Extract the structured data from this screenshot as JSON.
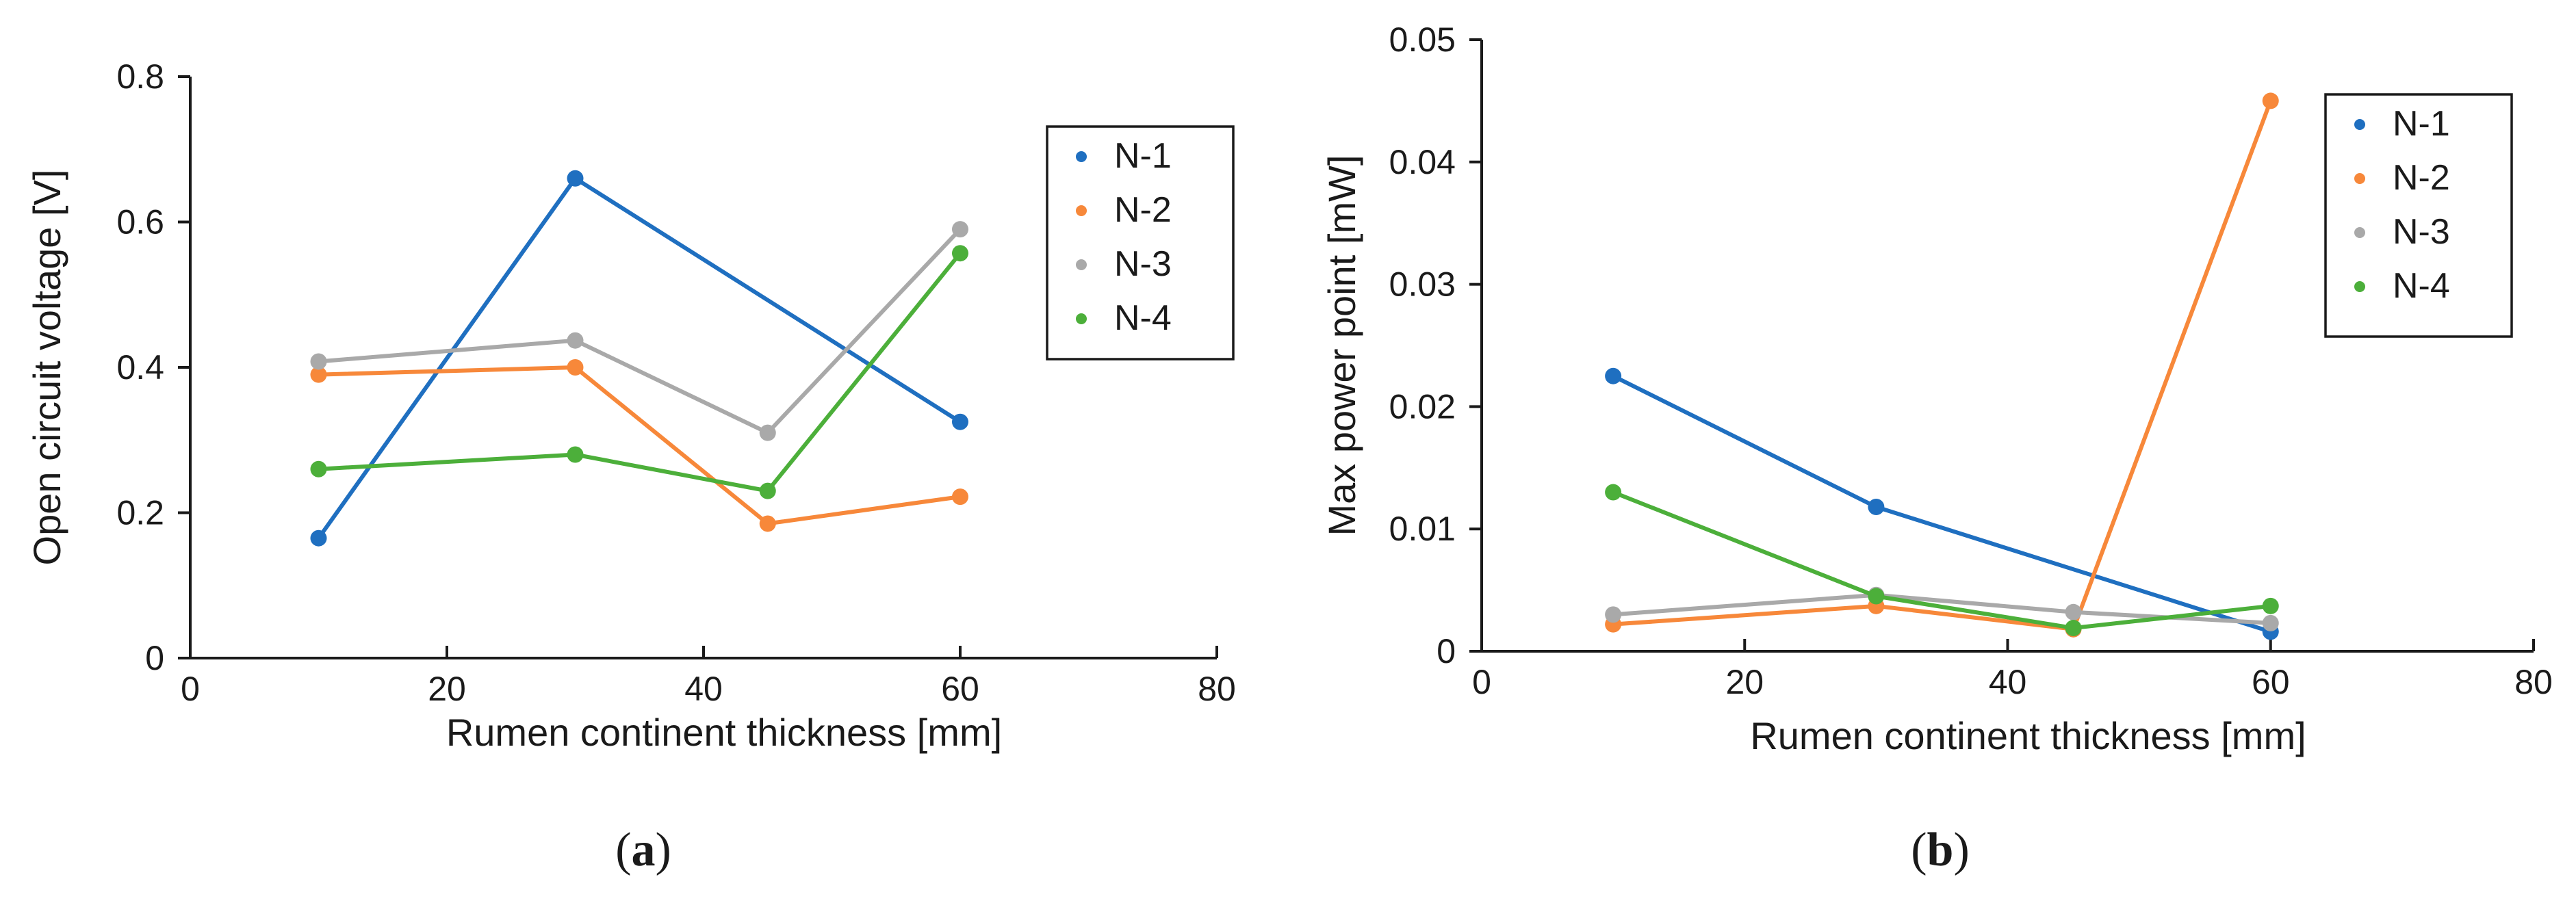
{
  "chart_data": [
    {
      "type": "line",
      "panel_label": "a",
      "title": "",
      "xlabel": "Rumen continent thickness [mm]",
      "ylabel": "Open circuit voltage  [V]",
      "xlim": [
        0,
        80
      ],
      "ylim": [
        0,
        0.8
      ],
      "xticks": [
        0,
        20,
        40,
        60,
        80
      ],
      "xtick_labels": [
        "0",
        "20",
        "40",
        "60",
        "80"
      ],
      "yticks": [
        0,
        0.2,
        0.4,
        0.6,
        0.8
      ],
      "ytick_labels": [
        "0",
        "0.2",
        "0.4",
        "0.6",
        "0.8"
      ],
      "grid": false,
      "legend_position": "top-right",
      "x": [
        10,
        30,
        45,
        60
      ],
      "series": [
        {
          "name": "N-1",
          "color": "#1f6fc0",
          "values": [
            0.165,
            0.66,
            null,
            0.325
          ]
        },
        {
          "name": "N-2",
          "color": "#f7883a",
          "values": [
            0.39,
            0.4,
            0.185,
            0.222
          ]
        },
        {
          "name": "N-3",
          "color": "#a9a9a9",
          "values": [
            0.408,
            0.437,
            0.31,
            0.59
          ]
        },
        {
          "name": "N-4",
          "color": "#4caf3a",
          "values": [
            0.26,
            0.28,
            0.23,
            0.557
          ]
        }
      ]
    },
    {
      "type": "line",
      "panel_label": "b",
      "title": "",
      "xlabel": "Rumen continent thickness [mm]",
      "ylabel": "Max power point  [mW]",
      "xlim": [
        0,
        80
      ],
      "ylim": [
        0,
        0.05
      ],
      "xticks": [
        0,
        20,
        40,
        60,
        80
      ],
      "xtick_labels": [
        "0",
        "20",
        "40",
        "60",
        "80"
      ],
      "yticks": [
        0,
        0.01,
        0.02,
        0.03,
        0.04,
        0.05
      ],
      "ytick_labels": [
        "0",
        "0.01",
        "0.02",
        "0.03",
        "0.04",
        "0.05"
      ],
      "grid": false,
      "legend_position": "top-right",
      "x": [
        10,
        30,
        45,
        60
      ],
      "series": [
        {
          "name": "N-1",
          "color": "#1f6fc0",
          "values": [
            0.0225,
            0.0118,
            null,
            0.0016
          ]
        },
        {
          "name": "N-2",
          "color": "#f7883a",
          "values": [
            0.0022,
            0.0037,
            0.0018,
            0.045
          ]
        },
        {
          "name": "N-3",
          "color": "#a9a9a9",
          "values": [
            0.003,
            0.0046,
            0.0032,
            0.0023
          ]
        },
        {
          "name": "N-4",
          "color": "#4caf3a",
          "values": [
            0.013,
            0.0045,
            0.0019,
            0.0037
          ]
        }
      ]
    }
  ]
}
